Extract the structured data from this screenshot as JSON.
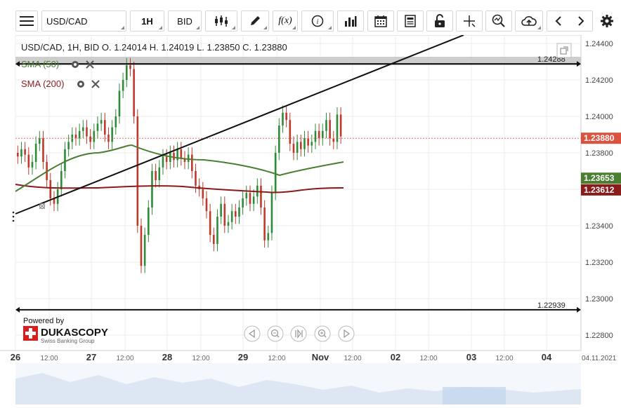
{
  "toolbar": {
    "symbol": "USD/CAD",
    "timeframe": "1H",
    "price_type": "BID",
    "function_label": "f(x)",
    "info_label": "i"
  },
  "chart": {
    "header": "USD/CAD, 1H, BID   O. 1.24014 H. 1.24019 L. 1.23850 C. 1.23880",
    "indicators": [
      {
        "name": "SMA (50)",
        "color": "#4a7f32"
      },
      {
        "name": "SMA (200)",
        "color": "#8b1a1a"
      }
    ],
    "price_axis": {
      "ticks": [
        "1.24400",
        "1.24200",
        "1.24000",
        "1.23800",
        "1.23600",
        "1.23400",
        "1.23200",
        "1.23000",
        "1.22800"
      ],
      "tick_values": [
        1.244,
        1.242,
        1.24,
        1.238,
        1.236,
        1.234,
        1.232,
        1.23,
        1.228
      ],
      "min": 1.2276,
      "max": 1.2452
    },
    "current_price": {
      "label": "1.23880",
      "value": 1.2388,
      "color": "#d9533f"
    },
    "sma50_label": {
      "label": "1.23653",
      "value": 1.23653,
      "color": "#4a7f32"
    },
    "sma200_label": {
      "label": "1.23612",
      "value": 1.23612,
      "color": "#8b1a1a"
    },
    "hlines": [
      {
        "label": "1.24288",
        "value": 1.24288
      },
      {
        "label": "1.22939",
        "value": 1.22939
      }
    ],
    "time_axis": [
      "26",
      "12:00",
      "27",
      "12:00",
      "28",
      "12:00",
      "29",
      "12:00",
      "Nov",
      "12:00",
      "02",
      "12:00",
      "03",
      "12:00",
      "04"
    ],
    "date_label": "04.11.2021",
    "branding": {
      "powered_by": "Powered by",
      "company": "DUKASCOPY",
      "subtitle": "Swiss Banking Group"
    }
  }
}
